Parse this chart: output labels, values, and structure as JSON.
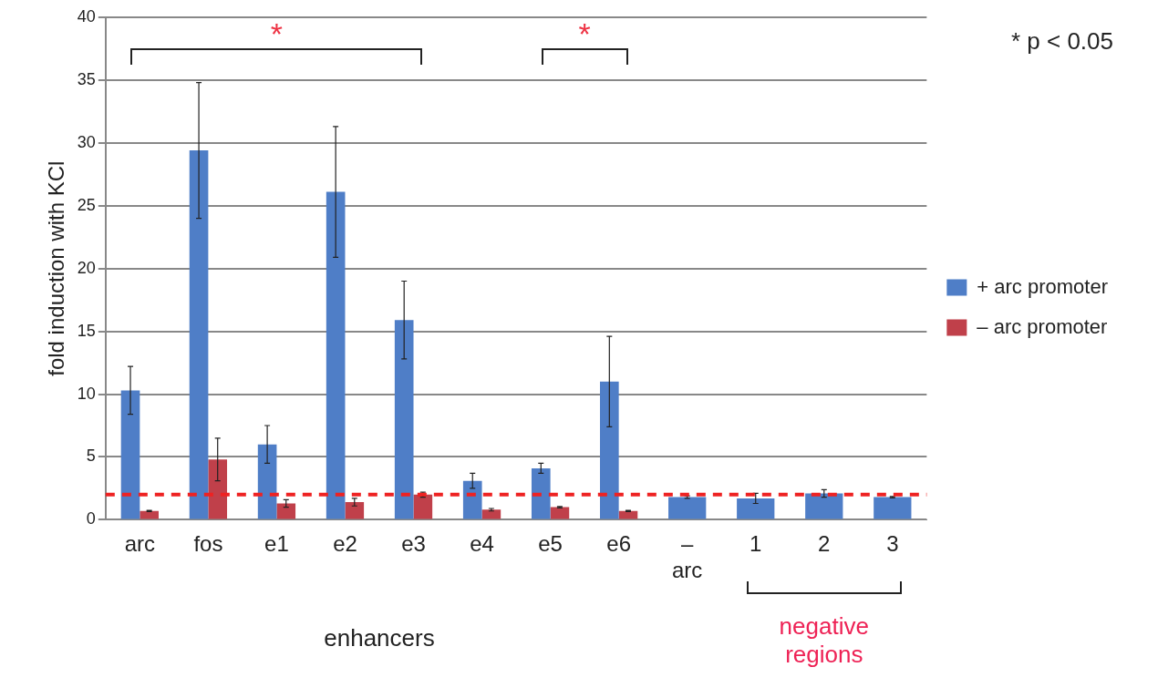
{
  "chart_data": {
    "type": "bar",
    "ylabel": "fold induction with KCl",
    "categories": [
      "arc",
      "fos",
      "e1",
      "e2",
      "e3",
      "e4",
      "e5",
      "e6",
      "–\narc",
      "1",
      "2",
      "3"
    ],
    "series": [
      {
        "name": "+ arc promoter",
        "color": "#4f7ec7",
        "values": [
          10.3,
          29.4,
          6.0,
          26.1,
          15.9,
          3.1,
          4.1,
          11.0,
          1.8,
          1.7,
          2.1,
          1.8
        ],
        "errors": [
          1.9,
          5.4,
          1.5,
          5.2,
          3.1,
          0.6,
          0.4,
          3.6,
          0.1,
          0.4,
          0.3,
          0.05
        ]
      },
      {
        "name": "– arc promoter",
        "color": "#c0404a",
        "values": [
          0.7,
          4.8,
          1.3,
          1.4,
          2.0,
          0.8,
          1.0,
          0.7,
          null,
          null,
          null,
          null
        ],
        "errors": [
          0.05,
          1.7,
          0.3,
          0.3,
          0.2,
          0.1,
          0.05,
          0.05,
          null,
          null,
          null,
          null
        ]
      }
    ],
    "ylim": [
      0,
      40
    ],
    "yticks": [
      0,
      5,
      10,
      15,
      20,
      25,
      30,
      35,
      40
    ],
    "grid": "y",
    "legend": "right",
    "ref_lines": [
      {
        "axis": "y",
        "value": 2,
        "color": "#ee2222",
        "line_style": "dashed"
      }
    ],
    "annotations": [
      "*",
      "*",
      "* p < 0.05",
      "enhancers",
      "negative regions"
    ]
  }
}
